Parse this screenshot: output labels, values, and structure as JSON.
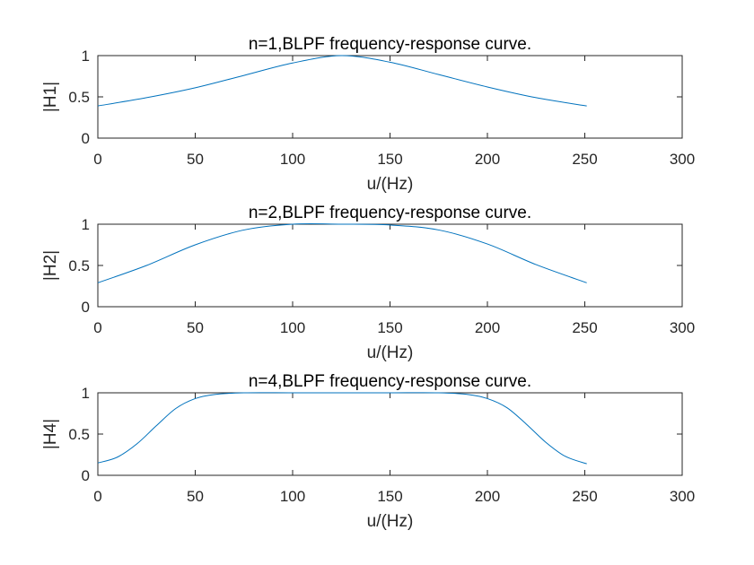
{
  "chart_data": [
    {
      "type": "line",
      "title": "n=1,BLPF frequency-response curve.",
      "xlabel": "u/(Hz)",
      "ylabel": "|H1|",
      "xlim": [
        0,
        300
      ],
      "ylim": [
        0,
        1
      ],
      "xticks": [
        "0",
        "50",
        "100",
        "150",
        "200",
        "250",
        "300"
      ],
      "yticks": [
        "0",
        "0.5",
        "1"
      ],
      "grid": false,
      "color": "#0072BD",
      "series": [
        {
          "x": [
            0,
            25,
            50,
            75,
            100,
            125,
            150,
            175,
            200,
            225,
            251
          ],
          "y": [
            0.39,
            0.49,
            0.61,
            0.76,
            0.91,
            1.0,
            0.92,
            0.77,
            0.62,
            0.49,
            0.39
          ]
        }
      ]
    },
    {
      "type": "line",
      "title": "n=2,BLPF frequency-response curve.",
      "xlabel": "u/(Hz)",
      "ylabel": "|H2|",
      "xlim": [
        0,
        300
      ],
      "ylim": [
        0,
        1
      ],
      "xticks": [
        "0",
        "50",
        "100",
        "150",
        "200",
        "250",
        "300"
      ],
      "yticks": [
        "0",
        "0.5",
        "1"
      ],
      "grid": false,
      "color": "#0072BD",
      "series": [
        {
          "x": [
            0,
            25,
            50,
            75,
            100,
            125,
            150,
            175,
            200,
            225,
            251
          ],
          "y": [
            0.29,
            0.5,
            0.75,
            0.93,
            1.0,
            1.0,
            0.99,
            0.93,
            0.76,
            0.51,
            0.29
          ]
        }
      ]
    },
    {
      "type": "line",
      "title": "n=4,BLPF frequency-response curve.",
      "xlabel": "u/(Hz)",
      "ylabel": "|H4|",
      "xlim": [
        0,
        300
      ],
      "ylim": [
        0,
        1
      ],
      "xticks": [
        "0",
        "50",
        "100",
        "150",
        "200",
        "250",
        "300"
      ],
      "yticks": [
        "0",
        "0.5",
        "1"
      ],
      "grid": false,
      "color": "#0072BD",
      "series": [
        {
          "x": [
            0,
            10,
            20,
            30,
            40,
            50,
            60,
            75,
            100,
            125,
            150,
            175,
            190,
            200,
            210,
            220,
            230,
            240,
            251
          ],
          "y": [
            0.15,
            0.22,
            0.38,
            0.6,
            0.81,
            0.93,
            0.98,
            1.0,
            1.0,
            1.0,
            1.0,
            1.0,
            0.98,
            0.93,
            0.82,
            0.62,
            0.4,
            0.23,
            0.14
          ]
        }
      ]
    }
  ]
}
